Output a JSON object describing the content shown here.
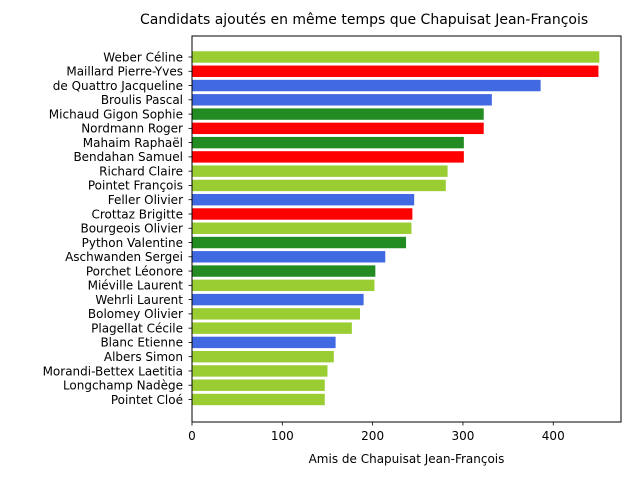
{
  "chart_data": {
    "type": "bar",
    "orientation": "horizontal",
    "title": "Candidats ajoutés en même temps que Chapuisat Jean-François",
    "xlabel": "Amis de Chapuisat Jean-François",
    "ylabel": "",
    "xlim": [
      0,
      475
    ],
    "xticks": [
      0,
      100,
      200,
      300,
      400
    ],
    "grid": false,
    "colors": {
      "lime": "#9acd32",
      "red": "#ff0000",
      "blue": "#4169e1",
      "green": "#228b22"
    },
    "bars": [
      {
        "name": "Weber Céline",
        "value": 451,
        "color": "#9acd32"
      },
      {
        "name": "Maillard Pierre-Yves",
        "value": 450,
        "color": "#ff0000"
      },
      {
        "name": "de Quattro Jacqueline",
        "value": 386,
        "color": "#4169e1"
      },
      {
        "name": "Broulis Pascal",
        "value": 332,
        "color": "#4169e1"
      },
      {
        "name": "Michaud Gigon Sophie",
        "value": 323,
        "color": "#228b22"
      },
      {
        "name": "Nordmann Roger",
        "value": 323,
        "color": "#ff0000"
      },
      {
        "name": "Mahaim Raphaël",
        "value": 301,
        "color": "#228b22"
      },
      {
        "name": "Bendahan Samuel",
        "value": 301,
        "color": "#ff0000"
      },
      {
        "name": "Richard Claire",
        "value": 283,
        "color": "#9acd32"
      },
      {
        "name": "Pointet François",
        "value": 281,
        "color": "#9acd32"
      },
      {
        "name": "Feller Olivier",
        "value": 246,
        "color": "#4169e1"
      },
      {
        "name": "Crottaz Brigitte",
        "value": 244,
        "color": "#ff0000"
      },
      {
        "name": "Bourgeois Olivier",
        "value": 243,
        "color": "#9acd32"
      },
      {
        "name": "Python Valentine",
        "value": 237,
        "color": "#228b22"
      },
      {
        "name": "Aschwanden Sergei",
        "value": 214,
        "color": "#4169e1"
      },
      {
        "name": "Porchet Léonore",
        "value": 203,
        "color": "#228b22"
      },
      {
        "name": "Miéville Laurent",
        "value": 202,
        "color": "#9acd32"
      },
      {
        "name": "Wehrli Laurent",
        "value": 190,
        "color": "#4169e1"
      },
      {
        "name": "Bolomey Olivier",
        "value": 186,
        "color": "#9acd32"
      },
      {
        "name": "Plagellat Cécile",
        "value": 177,
        "color": "#9acd32"
      },
      {
        "name": "Blanc Etienne",
        "value": 159,
        "color": "#4169e1"
      },
      {
        "name": "Albers Simon",
        "value": 157,
        "color": "#9acd32"
      },
      {
        "name": "Morandi-Bettex Laetitia",
        "value": 150,
        "color": "#9acd32"
      },
      {
        "name": "Longchamp Nadège",
        "value": 147,
        "color": "#9acd32"
      },
      {
        "name": "Pointet Cloé",
        "value": 147,
        "color": "#9acd32"
      }
    ]
  }
}
